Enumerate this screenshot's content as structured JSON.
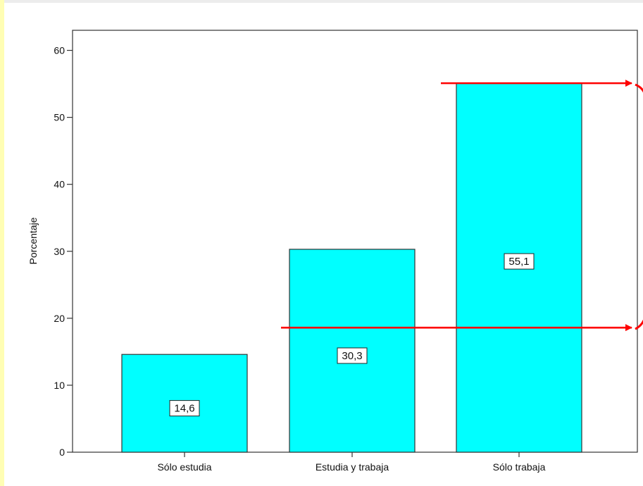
{
  "chart_data": {
    "type": "bar",
    "title": "",
    "xlabel": "",
    "ylabel": "Porcentaje",
    "categories": [
      "Sólo estudia",
      "Estudia y  trabaja",
      "Sólo trabaja"
    ],
    "values": [
      14.6,
      30.3,
      55.1
    ],
    "data_labels": [
      "14,6",
      "30,3",
      "55,1"
    ],
    "ylim": [
      0,
      63
    ],
    "yticks": [
      0,
      10,
      20,
      30,
      40,
      50,
      60
    ],
    "grid": false,
    "legend": "none",
    "annotations": [
      {
        "type": "horizontal-arrow",
        "y": 55.1,
        "from_category": "Sólo trabaja"
      },
      {
        "type": "horizontal-arrow",
        "y": 18.6,
        "from_category": "Estudia y  trabaja"
      }
    ]
  },
  "colors": {
    "bar_fill": "#00ffff",
    "bar_stroke": "#333333",
    "annotation": "#ff0000",
    "left_strip": "#fffeb4"
  }
}
